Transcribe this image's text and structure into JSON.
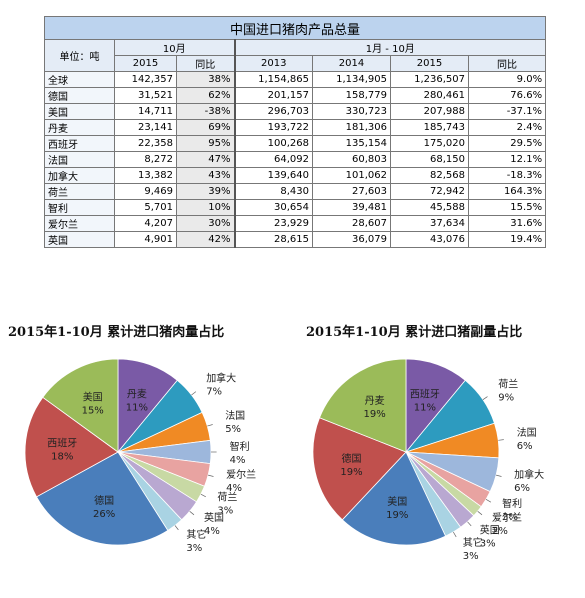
{
  "table": {
    "title": "中国进口猪肉产品总量",
    "unit_label": "单位：吨",
    "group_oct": "10月",
    "group_ytd": "1月 - 10月",
    "columns": [
      "2015",
      "同比",
      "2013",
      "2014",
      "2015",
      "同比"
    ],
    "rows": [
      {
        "country": "全球",
        "cells": [
          "142,357",
          "38%",
          "1,154,865",
          "1,134,905",
          "1,236,507",
          "9.0%"
        ]
      },
      {
        "country": "德国",
        "cells": [
          "31,521",
          "62%",
          "201,157",
          "158,779",
          "280,461",
          "76.6%"
        ]
      },
      {
        "country": "美国",
        "cells": [
          "14,711",
          "-38%",
          "296,703",
          "330,723",
          "207,988",
          "-37.1%"
        ]
      },
      {
        "country": "丹麦",
        "cells": [
          "23,141",
          "69%",
          "193,722",
          "181,306",
          "185,743",
          "2.4%"
        ]
      },
      {
        "country": "西班牙",
        "cells": [
          "22,358",
          "95%",
          "100,268",
          "135,154",
          "175,020",
          "29.5%"
        ]
      },
      {
        "country": "法国",
        "cells": [
          "8,272",
          "47%",
          "64,092",
          "60,803",
          "68,150",
          "12.1%"
        ]
      },
      {
        "country": "加拿大",
        "cells": [
          "13,382",
          "43%",
          "139,640",
          "101,062",
          "82,568",
          "-18.3%"
        ]
      },
      {
        "country": "荷兰",
        "cells": [
          "9,469",
          "39%",
          "8,430",
          "27,603",
          "72,942",
          "164.3%"
        ]
      },
      {
        "country": "智利",
        "cells": [
          "5,701",
          "10%",
          "30,654",
          "39,481",
          "45,588",
          "15.5%"
        ]
      },
      {
        "country": "爱尔兰",
        "cells": [
          "4,207",
          "30%",
          "23,929",
          "28,607",
          "37,634",
          "31.6%"
        ]
      },
      {
        "country": "英国",
        "cells": [
          "4,901",
          "42%",
          "28,615",
          "36,079",
          "43,076",
          "19.4%"
        ]
      }
    ]
  },
  "chart_data": [
    {
      "type": "pie",
      "title": "2015年1-10月 累计进口猪肉量占比",
      "slices": [
        {
          "label": "丹麦",
          "value": 11,
          "text": "11%",
          "color": "#7a5aa6"
        },
        {
          "label": "加拿大",
          "value": 7,
          "text": "7%",
          "color": "#2d9bbf"
        },
        {
          "label": "法国",
          "value": 5,
          "text": "5%",
          "color": "#f08a24"
        },
        {
          "label": "智利",
          "value": 4,
          "text": "4%",
          "color": "#9db7dc"
        },
        {
          "label": "爱尔兰",
          "value": 4,
          "text": "4%",
          "color": "#e8a3a1"
        },
        {
          "label": "荷兰",
          "value": 3,
          "text": "3%",
          "color": "#c8d9a4"
        },
        {
          "label": "英国",
          "value": 4,
          "text": "4%",
          "color": "#b9a8d1"
        },
        {
          "label": "其它",
          "value": 3,
          "text": "3%",
          "color": "#a9d3e3"
        },
        {
          "label": "德国",
          "value": 26,
          "text": "26%",
          "color": "#4a7ebb"
        },
        {
          "label": "西班牙",
          "value": 18,
          "text": "18%",
          "color": "#c0504d"
        },
        {
          "label": "美国",
          "value": 15,
          "text": "15%",
          "color": "#9bbb59"
        }
      ]
    },
    {
      "type": "pie",
      "title": "2015年1-10月 累计进口猪副量占比",
      "slices": [
        {
          "label": "西班牙",
          "value": 11,
          "text": "11%",
          "color": "#7a5aa6"
        },
        {
          "label": "荷兰",
          "value": 9,
          "text": "9%",
          "color": "#2d9bbf"
        },
        {
          "label": "法国",
          "value": 6,
          "text": "6%",
          "color": "#f08a24"
        },
        {
          "label": "加拿大",
          "value": 6,
          "text": "6%",
          "color": "#9db7dc"
        },
        {
          "label": "智利",
          "value": 3,
          "text": "3%",
          "color": "#e8a3a1"
        },
        {
          "label": "爱尔兰",
          "value": 2,
          "text": "2%",
          "color": "#c8d9a4"
        },
        {
          "label": "英国",
          "value": 3,
          "text": "3%",
          "color": "#b9a8d1"
        },
        {
          "label": "其它",
          "value": 3,
          "text": "3%",
          "color": "#a9d3e3"
        },
        {
          "label": "美国",
          "value": 19,
          "text": "19%",
          "color": "#4a7ebb"
        },
        {
          "label": "德国",
          "value": 19,
          "text": "19%",
          "color": "#c0504d"
        },
        {
          "label": "丹麦",
          "value": 19,
          "text": "19%",
          "color": "#9bbb59"
        }
      ]
    }
  ]
}
